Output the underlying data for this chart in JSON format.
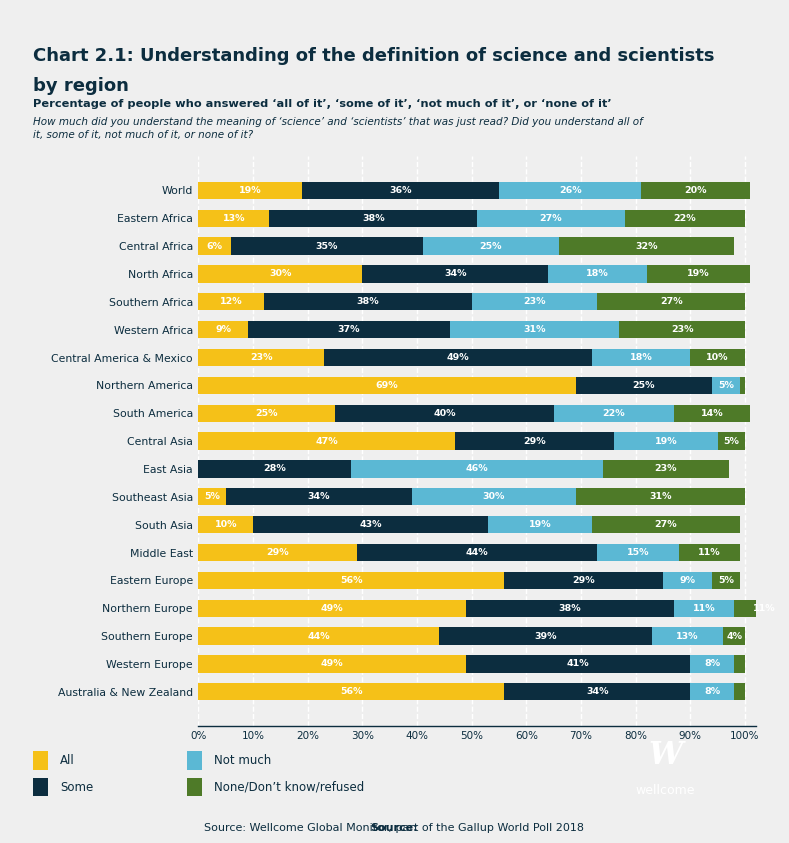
{
  "title_line1": "Chart 2.1: Understanding of the definition of science and scientists",
  "title_line2": "by region",
  "subtitle1": "Percentage of people who answered ‘all of it’, ‘some of it’, ‘not much of it’, or ‘none of it’",
  "subtitle2": "How much did you understand the meaning of ‘science’ and ‘scientists’ that was just read? Did you understand all of\nit, some of it, not much of it, or none of it?",
  "source_bold": "Source:",
  "source_rest": " Wellcome Global Monitor, part of the Gallup World Poll 2018",
  "categories": [
    "World",
    "Eastern Africa",
    "Central Africa",
    "North Africa",
    "Southern Africa",
    "Western Africa",
    "Central America & Mexico",
    "Northern America",
    "South America",
    "Central Asia",
    "East Asia",
    "Southeast Asia",
    "South Asia",
    "Middle East",
    "Eastern Europe",
    "Northern Europe",
    "Southern Europe",
    "Western Europe",
    "Australia & New Zealand"
  ],
  "data_all": [
    19,
    13,
    6,
    30,
    12,
    9,
    23,
    69,
    25,
    47,
    0,
    5,
    10,
    29,
    56,
    49,
    44,
    49,
    56
  ],
  "data_some": [
    36,
    38,
    35,
    34,
    38,
    37,
    49,
    25,
    40,
    29,
    28,
    34,
    43,
    44,
    29,
    38,
    39,
    41,
    34
  ],
  "data_notmuch": [
    26,
    27,
    25,
    18,
    23,
    31,
    18,
    5,
    22,
    19,
    46,
    30,
    19,
    15,
    9,
    11,
    13,
    8,
    8
  ],
  "data_none": [
    20,
    22,
    32,
    19,
    27,
    23,
    10,
    1,
    14,
    5,
    23,
    31,
    27,
    11,
    5,
    11,
    4,
    2,
    2
  ],
  "color_all": "#F5C118",
  "color_some": "#0C2D3F",
  "color_notmuch": "#5BB8D4",
  "color_none": "#4E7A28",
  "bg_color": "#EFEFEF",
  "header_color": "#0C2D3F",
  "text_color": "#0C2D3F",
  "legend_labels": [
    "All",
    "Some",
    "Not much",
    "None/Don’t know/refused"
  ]
}
